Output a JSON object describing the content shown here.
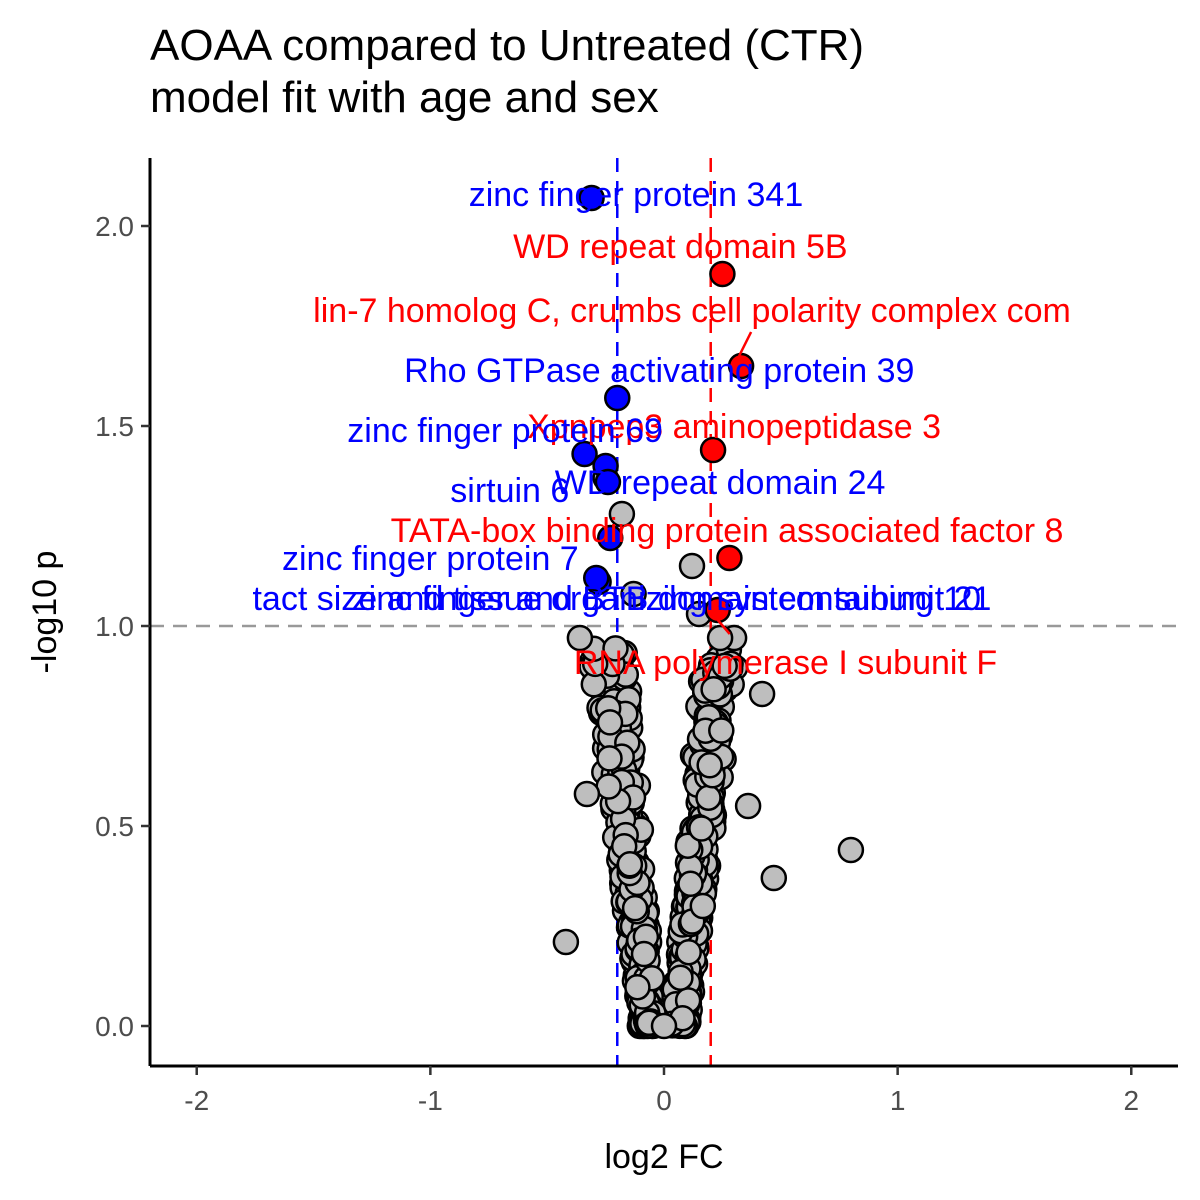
{
  "chart_data": {
    "type": "scatter",
    "title": "AOAA compared to Untreated (CTR)",
    "subtitle": "model fit with age and sex",
    "xlabel": "log2 FC",
    "ylabel": "-log10 p",
    "xlim": [
      -2.2,
      2.2
    ],
    "ylim": [
      -0.1,
      2.17
    ],
    "xticks": [
      -2,
      -1,
      0,
      1,
      2
    ],
    "xtick_labels": [
      "-2",
      "-1",
      "0",
      "1",
      "2"
    ],
    "yticks": [
      0.0,
      0.5,
      1.0,
      1.5,
      2.0
    ],
    "ytick_labels": [
      "0.0",
      "0.5",
      "1.0",
      "1.5",
      "2.0"
    ],
    "grid": false,
    "reference_lines": {
      "fc_threshold_down": -0.2,
      "fc_threshold_up": 0.2,
      "p_threshold": 1.0
    },
    "colors": {
      "down": "#0000ff",
      "up": "#ff0000",
      "ns": "#bebebe",
      "outline": "#000000",
      "p_line": "#999999"
    },
    "labeled_points": [
      {
        "label": "zinc finger protein 341",
        "x": -0.31,
        "y": 2.07,
        "group": "down",
        "lx": -0.12,
        "ly": 2.08
      },
      {
        "label": "WD repeat domain 5B",
        "x": 0.25,
        "y": 1.88,
        "group": "up",
        "lx": 0.07,
        "ly": 1.95
      },
      {
        "label": "lin-7 homolog C, crumbs cell polarity complex com",
        "x": 0.33,
        "y": 1.65,
        "group": "up",
        "lx": 0.12,
        "ly": 1.79
      },
      {
        "label": "Rho GTPase activating protein 39",
        "x": -0.2,
        "y": 1.57,
        "group": "down",
        "lx": -0.02,
        "ly": 1.64
      },
      {
        "label": "Xpnpep3 aminopeptidase 3",
        "x": 0.21,
        "y": 1.44,
        "group": "up",
        "lx": 0.3,
        "ly": 1.5
      },
      {
        "label": "zinc finger protein 69",
        "x": -0.34,
        "y": 1.43,
        "group": "down",
        "lx": -0.68,
        "ly": 1.49
      },
      {
        "label": "sirtuin 6",
        "x": -0.25,
        "y": 1.4,
        "group": "down",
        "lx": -0.66,
        "ly": 1.34
      },
      {
        "label": "WD repeat domain 24",
        "x": -0.24,
        "y": 1.36,
        "group": "down",
        "lx": 0.24,
        "ly": 1.36
      },
      {
        "label": "TATA-box binding protein associated factor 8",
        "x": 0.28,
        "y": 1.17,
        "group": "up",
        "lx": 0.27,
        "ly": 1.24
      },
      {
        "label": "zinc finger protein 7",
        "x": -0.23,
        "y": 1.22,
        "group": "down",
        "lx": -1.0,
        "ly": 1.17
      },
      {
        "label": "zinc finger and BTB domain containing 10",
        "x": -0.28,
        "y": 1.11,
        "group": "down",
        "lx": 0.01,
        "ly": 1.07
      },
      {
        "label": "tact size and tissue organizing system subunit 21",
        "x": -0.29,
        "y": 1.12,
        "group": "down",
        "lx": -0.18,
        "ly": 1.07
      },
      {
        "label": "RNA polymerase I subunit F",
        "x": 0.23,
        "y": 1.04,
        "group": "up",
        "lx": 0.52,
        "ly": 0.91
      }
    ]
  }
}
